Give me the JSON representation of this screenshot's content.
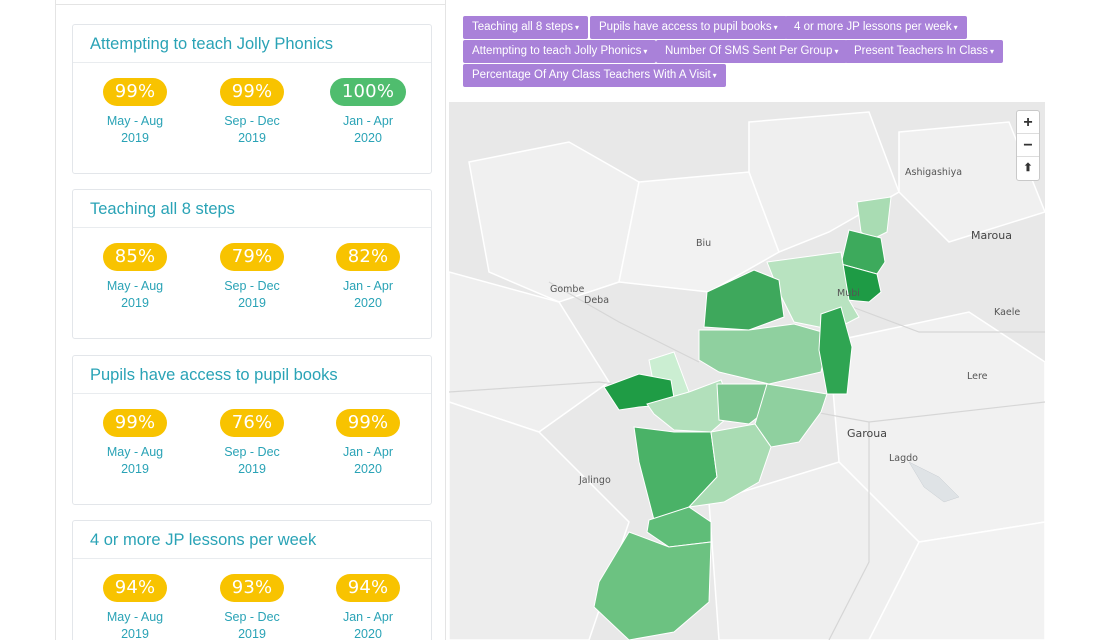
{
  "indicators": [
    {
      "title": "Attempting to teach Jolly Phonics",
      "stats": [
        {
          "value": "99%",
          "period": "May - Aug",
          "year": "2019"
        },
        {
          "value": "99%",
          "period": "Sep - Dec",
          "year": "2019"
        },
        {
          "value": "100%",
          "period": "Jan - Apr",
          "year": "2020"
        }
      ]
    },
    {
      "title": "Teaching all 8 steps",
      "stats": [
        {
          "value": "85%",
          "period": "May - Aug",
          "year": "2019"
        },
        {
          "value": "79%",
          "period": "Sep - Dec",
          "year": "2019"
        },
        {
          "value": "82%",
          "period": "Jan - Apr",
          "year": "2020"
        }
      ]
    },
    {
      "title": "Pupils have access to pupil books",
      "stats": [
        {
          "value": "99%",
          "period": "May - Aug",
          "year": "2019"
        },
        {
          "value": "76%",
          "period": "Sep - Dec",
          "year": "2019"
        },
        {
          "value": "99%",
          "period": "Jan - Apr",
          "year": "2020"
        }
      ]
    },
    {
      "title": "4 or more JP lessons per week",
      "stats": [
        {
          "value": "94%",
          "period": "May - Aug",
          "year": "2019"
        },
        {
          "value": "93%",
          "period": "Sep - Dec",
          "year": "2019"
        },
        {
          "value": "94%",
          "period": "Jan - Apr",
          "year": "2020"
        }
      ]
    }
  ],
  "filters": [
    "Teaching all 8 steps",
    "Pupils have access to pupil books",
    "4 or more JP lessons per week",
    "Attempting to teach Jolly Phonics",
    "Number Of SMS Sent Per Group",
    "Present Teachers In Class",
    "Percentage Of Any Class Teachers With A Visit"
  ],
  "map": {
    "zoom_in": "+",
    "zoom_out": "−",
    "reset_north": "⬆",
    "places": [
      "Ashigashiya",
      "Maroua",
      "Biu",
      "Gombe",
      "Deba",
      "Mubi",
      "Kaele",
      "Lere",
      "Garoua",
      "Lagdo",
      "Jalingo"
    ]
  },
  "colors": {
    "badge_yellow": "#f8c300",
    "badge_green": "#4fbd6e",
    "title_teal": "#2aa3b6",
    "filter_purple": "#a981d9"
  }
}
